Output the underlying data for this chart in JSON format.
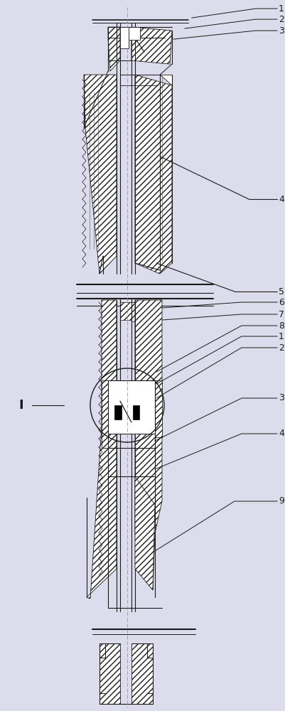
{
  "bg_color": "#dcdcec",
  "line_color": "#1a1a1a",
  "fig_width": 4.01,
  "fig_height": 10.0,
  "dpi": 100
}
